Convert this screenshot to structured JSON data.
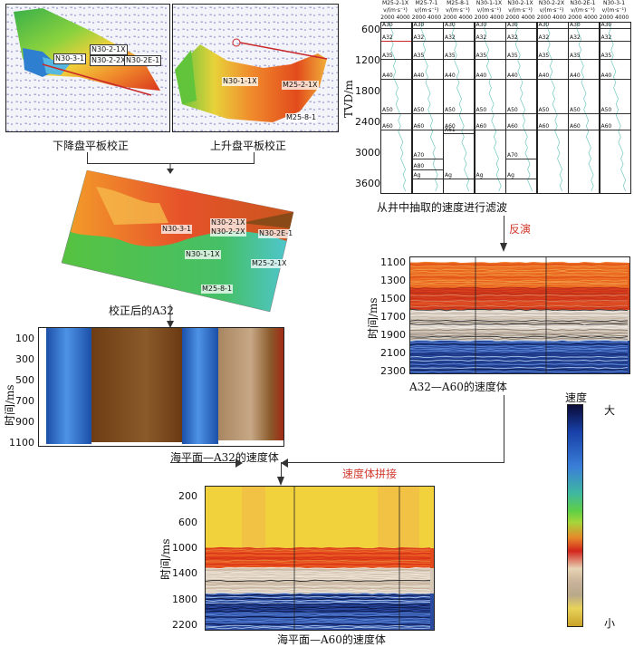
{
  "top_left": {
    "panel1_caption": "下降盘平板校正",
    "panel2_caption": "上升盘平板校正",
    "panel1_wells": [
      "N30-3-1",
      "N30-2-1X",
      "N30-2-2X",
      "N30-2E-1"
    ],
    "panel2_wells": [
      "N30-1-1X",
      "M25-2-1X",
      "M25-8-1"
    ]
  },
  "corrected": {
    "caption": "校正后的A32",
    "wells": [
      "N30-2-1X",
      "N30-3-1",
      "N30-2-2X",
      "N30-2E-1",
      "N30-1-1X",
      "M25-2-1X",
      "M25-8-1"
    ]
  },
  "velocity_a32": {
    "y_axis_label": "时间/ms",
    "y_ticks": [
      "100",
      "300",
      "500",
      "700",
      "900",
      "1100"
    ],
    "caption": "海平面—A32的速度体"
  },
  "well_logs": {
    "y_axis_label": "TVD/m",
    "y_ticks": [
      "600",
      "1200",
      "1800",
      "2400",
      "3000",
      "3600"
    ],
    "axis_unit": "v/(m·s⁻¹)",
    "axis_ticks": [
      "2000",
      "4000"
    ],
    "caption": "从井中抽取的速度进行滤波",
    "wells": [
      {
        "name": "M25-2-1X",
        "horizons": [
          "A30",
          "A32",
          "A35",
          "A40",
          "A50",
          "A60"
        ]
      },
      {
        "name": "M25-7-1",
        "horizons": [
          "A30",
          "A32",
          "A35",
          "A40",
          "A50",
          "A60",
          "A70",
          "A80",
          "Ag"
        ]
      },
      {
        "name": "M25-8-1",
        "horizons": [
          "A30",
          "A32",
          "A35",
          "A40",
          "A50",
          "A60",
          "A61",
          "Ag"
        ]
      },
      {
        "name": "N30-1-1X",
        "horizons": [
          "A30",
          "A32",
          "A35",
          "A40",
          "A50",
          "A60",
          "Ag"
        ]
      },
      {
        "name": "N30-2-1X",
        "horizons": [
          "A30",
          "A32",
          "A35",
          "A40",
          "A50",
          "A60",
          "A70",
          "Ag"
        ]
      },
      {
        "name": "N30-2-2X",
        "horizons": [
          "A30",
          "A32",
          "A35",
          "A40",
          "A50",
          "A60"
        ]
      },
      {
        "name": "N30-2E-1",
        "horizons": [
          "A30",
          "A32",
          "A35",
          "A40",
          "A50",
          "A60"
        ]
      },
      {
        "name": "N30-3-1",
        "horizons": [
          "A30",
          "A32",
          "A35",
          "A40",
          "A50",
          "A60"
        ]
      }
    ]
  },
  "inversion": {
    "arrow_label": "反演",
    "y_axis_label": "时间/ms",
    "y_ticks": [
      "1100",
      "1300",
      "1500",
      "1700",
      "1900",
      "2100",
      "2300"
    ],
    "caption": "A32—A60的速度体"
  },
  "merged": {
    "arrow_label": "速度体拼接",
    "y_axis_label": "时间/ms",
    "y_ticks": [
      "200",
      "600",
      "1000",
      "1400",
      "1800",
      "2200"
    ],
    "caption": "海平面—A60的速度体"
  },
  "colorbar": {
    "title": "速度",
    "top_label": "大",
    "bottom_label": "小"
  },
  "colors": {
    "accent_red": "#d23a2e"
  }
}
